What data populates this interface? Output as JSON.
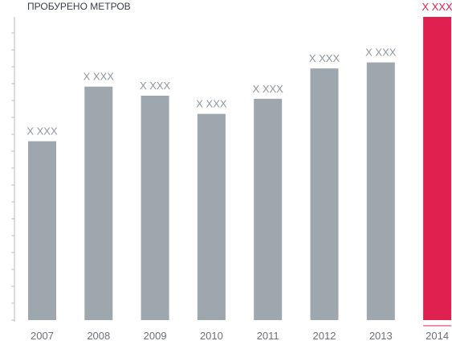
{
  "chart_data": {
    "type": "bar",
    "title": "ПРОБУРЕНО МЕТРОВ",
    "categories": [
      "2007",
      "2008",
      "2009",
      "2010",
      "2011",
      "2012",
      "2013",
      "2014"
    ],
    "values": [
      59,
      77,
      74,
      68,
      73,
      83,
      85,
      100
    ],
    "data_labels": [
      "X XXX",
      "X XXX",
      "X XXX",
      "X XXX",
      "X XXX",
      "X XXX",
      "X XXX",
      "X XXX"
    ],
    "highlight_index": 7,
    "ylim": [
      0,
      100
    ],
    "grid": false,
    "colors": {
      "bar": "#9ea7ae",
      "highlight": "#e0204f",
      "axis": "#b7bcc1",
      "label": "#8f979e",
      "highlight_label": "#e0204f",
      "highlight_tick": "#e0204f"
    }
  }
}
